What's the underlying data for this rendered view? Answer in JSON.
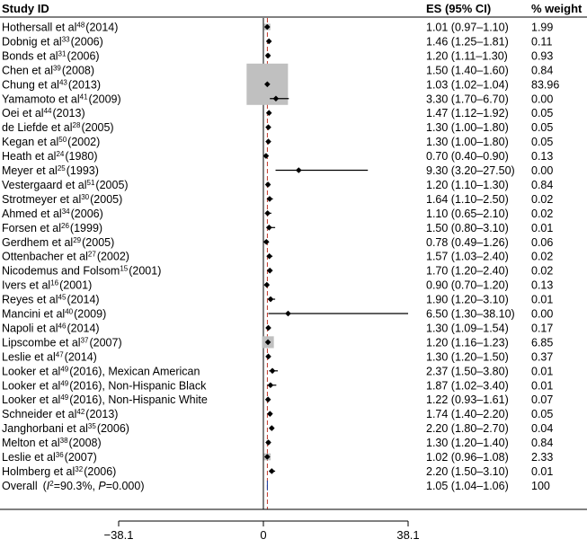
{
  "chart_data": {
    "type": "forest",
    "headers": {
      "study": "Study ID",
      "es": "ES (95% CI)",
      "weight": "% weight"
    },
    "xlim": [
      -38.1,
      38.1
    ],
    "xticks": [
      {
        "value": -38.1,
        "label": "−38.1"
      },
      {
        "value": 0,
        "label": "0"
      },
      {
        "value": 38.1,
        "label": "38.1"
      }
    ],
    "reference_line": 0,
    "pooled_line": 1.05,
    "colors": {
      "marker": "#000000",
      "box": "#c0c0c0",
      "pooled": "#1f3f9f",
      "dashed": "#c0392b",
      "line": "#000000"
    },
    "studies": [
      {
        "name": "Hothersall et al",
        "ref": "48",
        "year": "(2014)",
        "es": 1.01,
        "lo": 0.97,
        "hi": 1.1,
        "es_text": "1.01 (0.97–1.10)",
        "weight": "1.99"
      },
      {
        "name": "Dobnig et al",
        "ref": "33",
        "year": "(2006)",
        "es": 1.46,
        "lo": 1.25,
        "hi": 1.81,
        "es_text": "1.46 (1.25–1.81)",
        "weight": "0.11"
      },
      {
        "name": "Bonds et al",
        "ref": "31",
        "year": "(2006)",
        "es": 1.2,
        "lo": 1.11,
        "hi": 1.3,
        "es_text": "1.20 (1.11–1.30)",
        "weight": "0.93"
      },
      {
        "name": "Chen et al",
        "ref": "39",
        "year": "(2008)",
        "es": 1.5,
        "lo": 1.4,
        "hi": 1.6,
        "es_text": "1.50 (1.40–1.60)",
        "weight": "0.84"
      },
      {
        "name": "Chung et al",
        "ref": "43",
        "year": "(2013)",
        "es": 1.03,
        "lo": 1.02,
        "hi": 1.04,
        "es_text": "1.03 (1.02–1.04)",
        "weight": "83.96"
      },
      {
        "name": "Yamamoto et al",
        "ref": "41",
        "year": "(2009)",
        "es": 3.3,
        "lo": 1.7,
        "hi": 6.7,
        "es_text": "3.30 (1.70–6.70)",
        "weight": "0.00"
      },
      {
        "name": "Oei et al",
        "ref": "44",
        "year": "(2013)",
        "es": 1.47,
        "lo": 1.12,
        "hi": 1.92,
        "es_text": "1.47 (1.12–1.92)",
        "weight": "0.05"
      },
      {
        "name": "de Liefde et al",
        "ref": "28",
        "year": "(2005)",
        "es": 1.3,
        "lo": 1.0,
        "hi": 1.8,
        "es_text": "1.30 (1.00–1.80)",
        "weight": "0.05"
      },
      {
        "name": "Kegan et al",
        "ref": "50",
        "year": "(2002)",
        "es": 1.3,
        "lo": 1.0,
        "hi": 1.8,
        "es_text": "1.30 (1.00–1.80)",
        "weight": "0.05"
      },
      {
        "name": "Heath et al",
        "ref": "24",
        "year": "(1980)",
        "es": 0.7,
        "lo": 0.4,
        "hi": 0.9,
        "es_text": "0.70 (0.40–0.90)",
        "weight": "0.13"
      },
      {
        "name": "Meyer et al",
        "ref": "25",
        "year": "(1993)",
        "es": 9.3,
        "lo": 3.2,
        "hi": 27.5,
        "es_text": "9.30 (3.20–27.50)",
        "weight": "0.00"
      },
      {
        "name": "Vestergaard et al",
        "ref": "51",
        "year": "(2005)",
        "es": 1.2,
        "lo": 1.1,
        "hi": 1.3,
        "es_text": "1.20 (1.10–1.30)",
        "weight": "0.84"
      },
      {
        "name": "Strotmeyer et al",
        "ref": "30",
        "year": "(2005)",
        "es": 1.64,
        "lo": 1.1,
        "hi": 2.5,
        "es_text": "1.64 (1.10–2.50)",
        "weight": "0.02"
      },
      {
        "name": "Ahmed et al",
        "ref": "34",
        "year": "(2006)",
        "es": 1.1,
        "lo": 0.65,
        "hi": 2.1,
        "es_text": "1.10 (0.65–2.10)",
        "weight": "0.02"
      },
      {
        "name": "Forsen et al",
        "ref": "26",
        "year": "(1999)",
        "es": 1.5,
        "lo": 0.8,
        "hi": 3.1,
        "es_text": "1.50 (0.80–3.10)",
        "weight": "0.01"
      },
      {
        "name": "Gerdhem et al",
        "ref": "29",
        "year": "(2005)",
        "es": 0.78,
        "lo": 0.49,
        "hi": 1.26,
        "es_text": "0.78 (0.49–1.26)",
        "weight": "0.06"
      },
      {
        "name": "Ottenbacher et al",
        "ref": "27",
        "year": "(2002)",
        "es": 1.57,
        "lo": 1.03,
        "hi": 2.4,
        "es_text": "1.57 (1.03–2.40)",
        "weight": "0.02"
      },
      {
        "name": "Nicodemus and Folsom",
        "ref": "15",
        "year": "(2001)",
        "es": 1.7,
        "lo": 1.2,
        "hi": 2.4,
        "es_text": "1.70 (1.20–2.40)",
        "weight": "0.02"
      },
      {
        "name": "Ivers et al",
        "ref": "16",
        "year": "(2001)",
        "es": 0.9,
        "lo": 0.7,
        "hi": 1.2,
        "es_text": "0.90 (0.70–1.20)",
        "weight": "0.13"
      },
      {
        "name": "Reyes et al",
        "ref": "45",
        "year": "(2014)",
        "es": 1.9,
        "lo": 1.2,
        "hi": 3.1,
        "es_text": "1.90 (1.20–3.10)",
        "weight": "0.01"
      },
      {
        "name": "Mancini et al",
        "ref": "40",
        "year": "(2009)",
        "es": 6.5,
        "lo": 1.3,
        "hi": 38.1,
        "es_text": "6.50 (1.30–38.10)",
        "weight": "0.00"
      },
      {
        "name": "Napoli et al",
        "ref": "46",
        "year": "(2014)",
        "es": 1.3,
        "lo": 1.09,
        "hi": 1.54,
        "es_text": "1.30 (1.09–1.54)",
        "weight": "0.17"
      },
      {
        "name": "Lipscombe et al",
        "ref": "37",
        "year": "(2007)",
        "es": 1.2,
        "lo": 1.16,
        "hi": 1.23,
        "es_text": "1.20 (1.16–1.23)",
        "weight": "6.85"
      },
      {
        "name": "Leslie et al",
        "ref": "47",
        "year": "(2014)",
        "es": 1.3,
        "lo": 1.2,
        "hi": 1.5,
        "es_text": "1.30 (1.20–1.50)",
        "weight": "0.37"
      },
      {
        "name": "Looker et al",
        "ref": "49",
        "year": "(2016), Mexican American",
        "es": 2.37,
        "lo": 1.5,
        "hi": 3.8,
        "es_text": "2.37 (1.50–3.80)",
        "weight": "0.01"
      },
      {
        "name": "Looker et al",
        "ref": "49",
        "year": "(2016), Non-Hispanic Black",
        "es": 1.87,
        "lo": 1.02,
        "hi": 3.4,
        "es_text": "1.87 (1.02–3.40)",
        "weight": "0.01"
      },
      {
        "name": "Looker et al",
        "ref": "49",
        "year": "(2016), Non-Hispanic White",
        "es": 1.22,
        "lo": 0.93,
        "hi": 1.61,
        "es_text": "1.22 (0.93–1.61)",
        "weight": "0.07"
      },
      {
        "name": "Schneider et al",
        "ref": "42",
        "year": "(2013)",
        "es": 1.74,
        "lo": 1.4,
        "hi": 2.2,
        "es_text": "1.74 (1.40–2.20)",
        "weight": "0.05"
      },
      {
        "name": "Janghorbani et al",
        "ref": "35",
        "year": "(2006)",
        "es": 2.2,
        "lo": 1.8,
        "hi": 2.7,
        "es_text": "2.20 (1.80–2.70)",
        "weight": "0.04"
      },
      {
        "name": "Melton et al",
        "ref": "38",
        "year": "(2008)",
        "es": 1.3,
        "lo": 1.2,
        "hi": 1.4,
        "es_text": "1.30 (1.20–1.40)",
        "weight": "0.84"
      },
      {
        "name": "Leslie et al",
        "ref": "36",
        "year": "(2007)",
        "es": 1.02,
        "lo": 0.96,
        "hi": 1.08,
        "es_text": "1.02 (0.96–1.08)",
        "weight": "2.33"
      },
      {
        "name": "Holmberg et al",
        "ref": "32",
        "year": "(2006)",
        "es": 2.2,
        "lo": 1.5,
        "hi": 3.1,
        "es_text": "2.20 (1.50–3.10)",
        "weight": "0.01"
      }
    ],
    "overall": {
      "label": "Overall",
      "stats_pre": "(",
      "i2_symbol": "I",
      "i2_sup": "2",
      "stats_post": "=90.3%, ",
      "p_symbol": "P",
      "p_text": "=0.000)",
      "es": 1.05,
      "lo": 1.04,
      "hi": 1.06,
      "es_text": "1.05 (1.04–1.06)",
      "weight": "100"
    }
  }
}
